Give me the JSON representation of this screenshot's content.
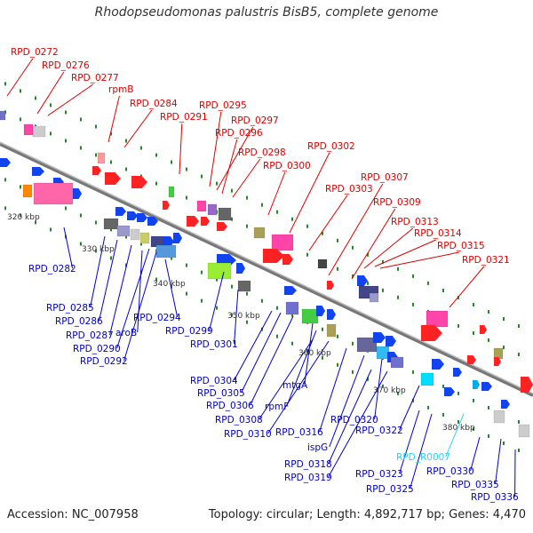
{
  "title": "Rhodopseudomonas palustris BisB5, complete genome",
  "footer": {
    "accession": "Accession: NC_007958",
    "stats": "Topology: circular; Length: 4,892,717 bp; Genes: 4,470"
  },
  "colors": {
    "top_label": "#e00000",
    "bottom_label": "#0000c8",
    "rna_label": "#33ccff",
    "backbone": "#888888",
    "dots": "#228b22"
  },
  "kbp_labels": [
    "320 kbp",
    "330 kbp",
    "340 kbp",
    "350 kbp",
    "360 kbp",
    "370 kbp",
    "380 kbp"
  ],
  "top_labels": [
    "RPD_0272",
    "RPD_0276",
    "RPD_0277",
    "rpmB",
    "RPD_0284",
    "RPD_0291",
    "RPD_0295",
    "RPD_0297",
    "RPD_0296",
    "RPD_0298",
    "RPD_0300",
    "RPD_0302",
    "RPD_0303",
    "RPD_0307",
    "RPD_0309",
    "RPD_0313",
    "RPD_0314",
    "RPD_0315",
    "RPD_0321"
  ],
  "bottom_labels": [
    "RPD_0282",
    "RPD_0285",
    "RPD_0286",
    "RPD_0287",
    "aroB",
    "RPD_0290",
    "RPD_0292",
    "RPD_0294",
    "RPD_0299",
    "RPD_0301",
    "RPD_0304",
    "RPD_0305",
    "RPD_0306",
    "mtgA",
    "rpmF",
    "RPD_0308",
    "RPD_0310",
    "RPD_0316",
    "ispG",
    "RPD_0320",
    "RPD_0322",
    "RPD_0318",
    "RPD_0319",
    "RPD_R0007",
    "RPD_0323",
    "RPD_0330",
    "RPD_0325",
    "RPD_0335",
    "RPD_0336"
  ]
}
